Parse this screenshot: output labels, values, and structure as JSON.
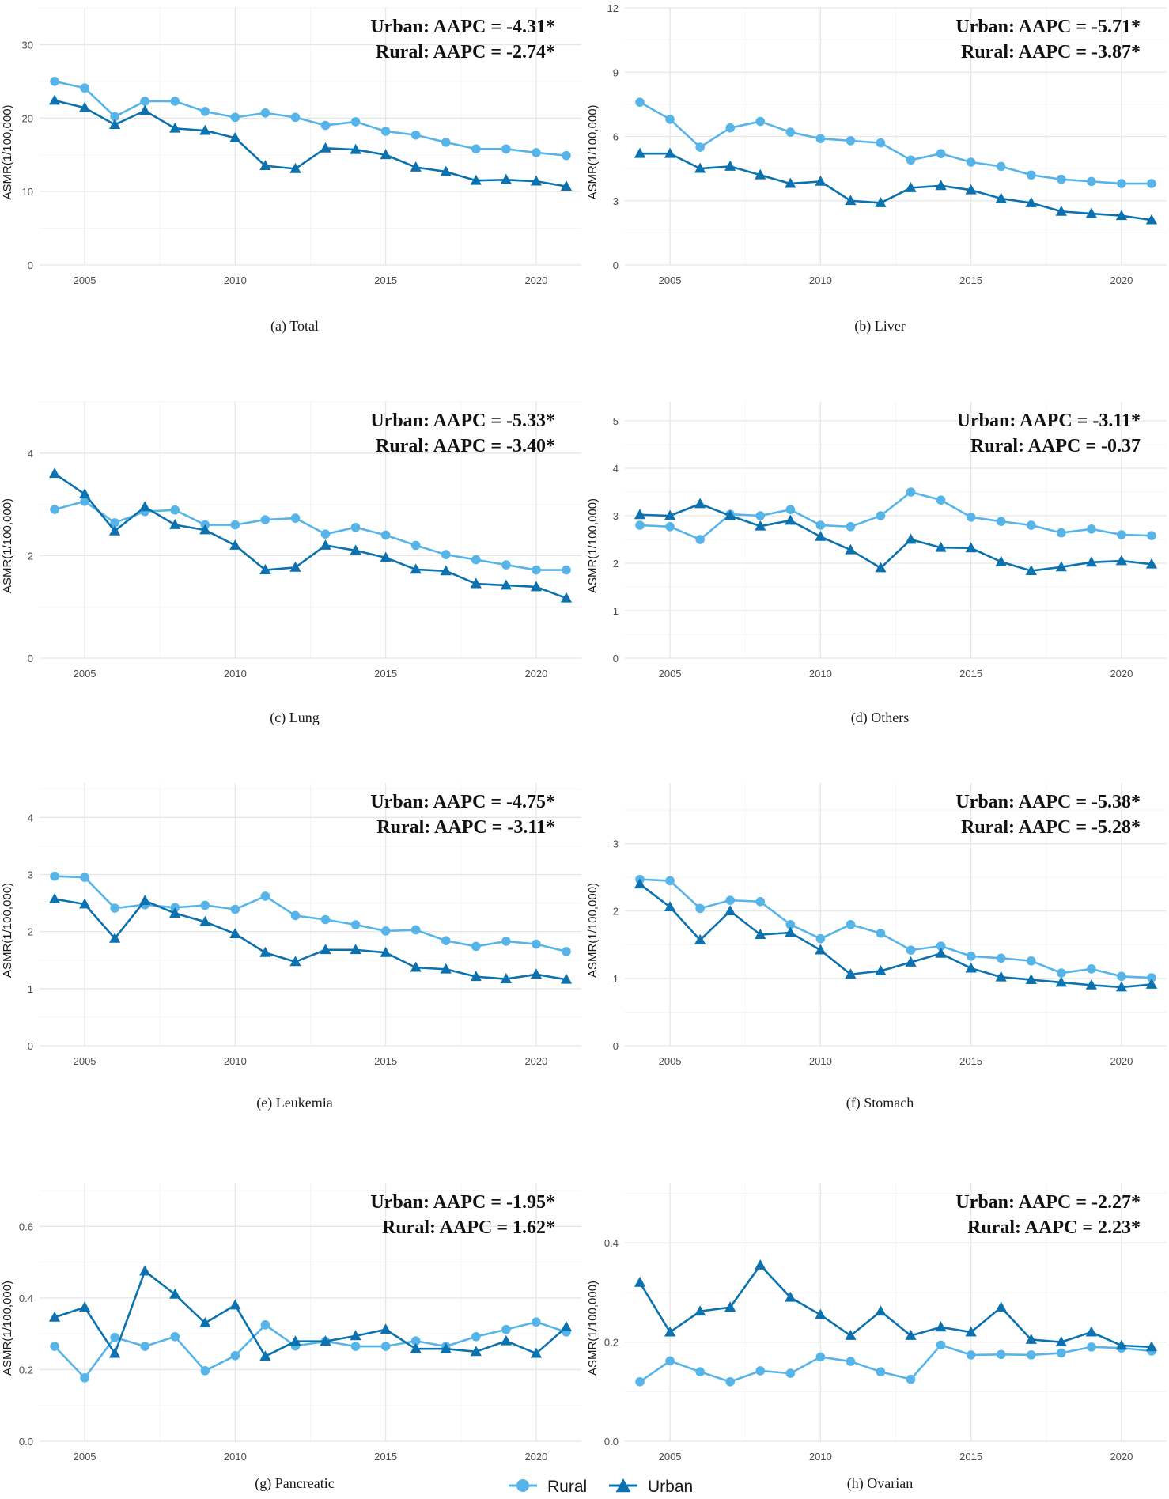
{
  "colors": {
    "rural": "#56B4E9",
    "urban": "#0C72AF"
  },
  "legend": {
    "rural_label": "Rural",
    "urban_label": "Urban",
    "rural_icon": "circle-marker-icon",
    "urban_icon": "triangle-marker-icon"
  },
  "chart_data": [
    {
      "type": "line",
      "caption": "(a) Total",
      "ylabel": "ASMR(1/100,000)",
      "annotation": {
        "urban": "Urban: AAPC = -4.31*",
        "rural": "Rural:  AAPC = -2.74*"
      },
      "ylim": [
        0,
        35
      ],
      "yticks": [
        0,
        10,
        20,
        30
      ],
      "xlim": [
        2003.5,
        2021.5
      ],
      "xticks": [
        2005,
        2010,
        2015,
        2020
      ],
      "x": [
        2004,
        2005,
        2006,
        2007,
        2008,
        2009,
        2010,
        2011,
        2012,
        2013,
        2014,
        2015,
        2016,
        2017,
        2018,
        2019,
        2020,
        2021
      ],
      "series": [
        {
          "name": "Rural",
          "values": [
            25.0,
            24.1,
            20.2,
            22.3,
            22.3,
            20.9,
            20.1,
            20.7,
            20.1,
            19.0,
            19.5,
            18.2,
            17.7,
            16.7,
            15.8,
            15.8,
            15.3,
            14.9
          ]
        },
        {
          "name": "Urban",
          "values": [
            22.4,
            21.4,
            19.1,
            21.0,
            18.6,
            18.3,
            17.3,
            13.5,
            13.1,
            15.9,
            15.7,
            15.0,
            13.3,
            12.7,
            11.5,
            11.6,
            11.4,
            10.7
          ]
        }
      ]
    },
    {
      "type": "line",
      "caption": "(b) Liver",
      "ylabel": "ASMR(1/100,000)",
      "annotation": {
        "urban": "Urban: AAPC = -5.71*",
        "rural": "Rural:  AAPC = -3.87*"
      },
      "ylim": [
        0,
        12
      ],
      "yticks": [
        0,
        3,
        6,
        9,
        12
      ],
      "xlim": [
        2003.5,
        2021.5
      ],
      "xticks": [
        2005,
        2010,
        2015,
        2020
      ],
      "x": [
        2004,
        2005,
        2006,
        2007,
        2008,
        2009,
        2010,
        2011,
        2012,
        2013,
        2014,
        2015,
        2016,
        2017,
        2018,
        2019,
        2020,
        2021
      ],
      "series": [
        {
          "name": "Rural",
          "values": [
            7.6,
            6.8,
            5.5,
            6.4,
            6.7,
            6.2,
            5.9,
            5.8,
            5.7,
            4.9,
            5.2,
            4.8,
            4.6,
            4.2,
            4.0,
            3.9,
            3.8,
            3.8
          ]
        },
        {
          "name": "Urban",
          "values": [
            5.2,
            5.2,
            4.5,
            4.6,
            4.2,
            3.8,
            3.9,
            3.0,
            2.9,
            3.6,
            3.7,
            3.5,
            3.1,
            2.9,
            2.5,
            2.4,
            2.3,
            2.1
          ]
        }
      ]
    },
    {
      "type": "line",
      "caption": "(c) Lung",
      "ylabel": "ASMR(1/100,000)",
      "annotation": {
        "urban": "Urban: AAPC = -5.33*",
        "rural": "Rural:  AAPC = -3.40*"
      },
      "ylim": [
        0,
        5
      ],
      "yticks": [
        0,
        2,
        4
      ],
      "xlim": [
        2003.5,
        2021.5
      ],
      "xticks": [
        2005,
        2010,
        2015,
        2020
      ],
      "x": [
        2004,
        2005,
        2006,
        2007,
        2008,
        2009,
        2010,
        2011,
        2012,
        2013,
        2014,
        2015,
        2016,
        2017,
        2018,
        2019,
        2020,
        2021
      ],
      "series": [
        {
          "name": "Rural",
          "values": [
            2.9,
            3.06,
            2.64,
            2.86,
            2.89,
            2.6,
            2.6,
            2.7,
            2.73,
            2.42,
            2.55,
            2.4,
            2.2,
            2.02,
            1.92,
            1.82,
            1.72,
            1.72
          ]
        },
        {
          "name": "Urban",
          "values": [
            3.6,
            3.2,
            2.48,
            2.95,
            2.6,
            2.5,
            2.2,
            1.72,
            1.77,
            2.2,
            2.1,
            1.96,
            1.73,
            1.7,
            1.45,
            1.42,
            1.39,
            1.17
          ]
        }
      ]
    },
    {
      "type": "line",
      "caption": "(d) Others",
      "ylabel": "ASMR(1/100,000)",
      "annotation": {
        "urban": "Urban: AAPC = -3.11*",
        "rural": "Rural:  AAPC = -0.37"
      },
      "ylim": [
        0,
        5.4
      ],
      "yticks": [
        0,
        1,
        2,
        3,
        4,
        5
      ],
      "xlim": [
        2003.5,
        2021.5
      ],
      "xticks": [
        2005,
        2010,
        2015,
        2020
      ],
      "x": [
        2004,
        2005,
        2006,
        2007,
        2008,
        2009,
        2010,
        2011,
        2012,
        2013,
        2014,
        2015,
        2016,
        2017,
        2018,
        2019,
        2020,
        2021
      ],
      "series": [
        {
          "name": "Rural",
          "values": [
            2.8,
            2.77,
            2.5,
            3.03,
            3.0,
            3.13,
            2.8,
            2.77,
            3.0,
            3.5,
            3.33,
            2.97,
            2.88,
            2.8,
            2.64,
            2.72,
            2.6,
            2.58
          ]
        },
        {
          "name": "Urban",
          "values": [
            3.02,
            3.0,
            3.25,
            3.0,
            2.78,
            2.9,
            2.56,
            2.28,
            1.9,
            2.5,
            2.33,
            2.32,
            2.03,
            1.84,
            1.92,
            2.02,
            2.05,
            1.98
          ]
        }
      ]
    },
    {
      "type": "line",
      "caption": "(e) Leukemia",
      "ylabel": "ASMR(1/100,000)",
      "annotation": {
        "urban": "Urban: AAPC = -4.75*",
        "rural": "Rural:  AAPC = -3.11*"
      },
      "ylim": [
        0,
        4.6
      ],
      "yticks": [
        0,
        1,
        2,
        3,
        4
      ],
      "xlim": [
        2003.5,
        2021.5
      ],
      "xticks": [
        2005,
        2010,
        2015,
        2020
      ],
      "x": [
        2004,
        2005,
        2006,
        2007,
        2008,
        2009,
        2010,
        2011,
        2012,
        2013,
        2014,
        2015,
        2016,
        2017,
        2018,
        2019,
        2020,
        2021
      ],
      "series": [
        {
          "name": "Rural",
          "values": [
            2.97,
            2.95,
            2.41,
            2.47,
            2.42,
            2.46,
            2.39,
            2.62,
            2.28,
            2.21,
            2.12,
            2.01,
            2.03,
            1.84,
            1.74,
            1.83,
            1.78,
            1.65
          ]
        },
        {
          "name": "Urban",
          "values": [
            2.57,
            2.48,
            1.88,
            2.54,
            2.32,
            2.17,
            1.96,
            1.63,
            1.47,
            1.68,
            1.68,
            1.63,
            1.37,
            1.34,
            1.21,
            1.17,
            1.25,
            1.16
          ]
        }
      ]
    },
    {
      "type": "line",
      "caption": "(f) Stomach",
      "ylabel": "ASMR(1/100,000)",
      "annotation": {
        "urban": "Urban: AAPC = -5.38*",
        "rural": "Rural:  AAPC = -5.28*"
      },
      "ylim": [
        0,
        3.9
      ],
      "yticks": [
        0,
        1,
        2,
        3
      ],
      "xlim": [
        2003.5,
        2021.5
      ],
      "xticks": [
        2005,
        2010,
        2015,
        2020
      ],
      "x": [
        2004,
        2005,
        2006,
        2007,
        2008,
        2009,
        2010,
        2011,
        2012,
        2013,
        2014,
        2015,
        2016,
        2017,
        2018,
        2019,
        2020,
        2021
      ],
      "series": [
        {
          "name": "Rural",
          "values": [
            2.47,
            2.45,
            2.04,
            2.16,
            2.14,
            1.8,
            1.59,
            1.8,
            1.67,
            1.42,
            1.48,
            1.33,
            1.3,
            1.26,
            1.08,
            1.14,
            1.03,
            1.01
          ]
        },
        {
          "name": "Urban",
          "values": [
            2.4,
            2.06,
            1.57,
            2.0,
            1.65,
            1.68,
            1.42,
            1.06,
            1.11,
            1.24,
            1.37,
            1.15,
            1.02,
            0.98,
            0.94,
            0.9,
            0.87,
            0.91
          ]
        }
      ]
    },
    {
      "type": "line",
      "caption": "(g) Pancreatic",
      "ylabel": "ASMR(1/100,000)",
      "annotation": {
        "urban": "Urban: AAPC = -1.95*",
        "rural": "Rural:  AAPC = 1.62*"
      },
      "ylim": [
        0,
        0.72
      ],
      "yticks": [
        0.0,
        0.2,
        0.4,
        0.6
      ],
      "xlim": [
        2003.5,
        2021.5
      ],
      "xticks": [
        2005,
        2010,
        2015,
        2020
      ],
      "x": [
        2004,
        2005,
        2006,
        2007,
        2008,
        2009,
        2010,
        2011,
        2012,
        2013,
        2014,
        2015,
        2016,
        2017,
        2018,
        2019,
        2020,
        2021
      ],
      "series": [
        {
          "name": "Rural",
          "values": [
            0.265,
            0.177,
            0.29,
            0.265,
            0.292,
            0.197,
            0.239,
            0.325,
            0.266,
            0.279,
            0.265,
            0.265,
            0.28,
            0.265,
            0.292,
            0.312,
            0.333,
            0.305
          ]
        },
        {
          "name": "Urban",
          "values": [
            0.346,
            0.374,
            0.245,
            0.475,
            0.41,
            0.33,
            0.38,
            0.237,
            0.279,
            0.279,
            0.294,
            0.312,
            0.258,
            0.258,
            0.25,
            0.28,
            0.245,
            0.319
          ]
        }
      ]
    },
    {
      "type": "line",
      "caption": "(h) Ovarian",
      "ylabel": "ASMR(1/100,000)",
      "annotation": {
        "urban": "Urban: AAPC = -2.27*",
        "rural": "Rural:  AAPC = 2.23*"
      },
      "ylim": [
        0,
        0.52
      ],
      "yticks": [
        0.0,
        0.2,
        0.4
      ],
      "xlim": [
        2003.5,
        2021.5
      ],
      "xticks": [
        2005,
        2010,
        2015,
        2020
      ],
      "x": [
        2004,
        2005,
        2006,
        2007,
        2008,
        2009,
        2010,
        2011,
        2012,
        2013,
        2014,
        2015,
        2016,
        2017,
        2018,
        2019,
        2020,
        2021
      ],
      "series": [
        {
          "name": "Rural",
          "values": [
            0.12,
            0.162,
            0.14,
            0.12,
            0.142,
            0.137,
            0.17,
            0.161,
            0.14,
            0.125,
            0.194,
            0.174,
            0.175,
            0.174,
            0.178,
            0.19,
            0.188,
            0.182
          ]
        },
        {
          "name": "Urban",
          "values": [
            0.32,
            0.22,
            0.262,
            0.27,
            0.355,
            0.29,
            0.255,
            0.213,
            0.262,
            0.213,
            0.23,
            0.22,
            0.27,
            0.205,
            0.2,
            0.22,
            0.193,
            0.19
          ]
        }
      ]
    }
  ]
}
